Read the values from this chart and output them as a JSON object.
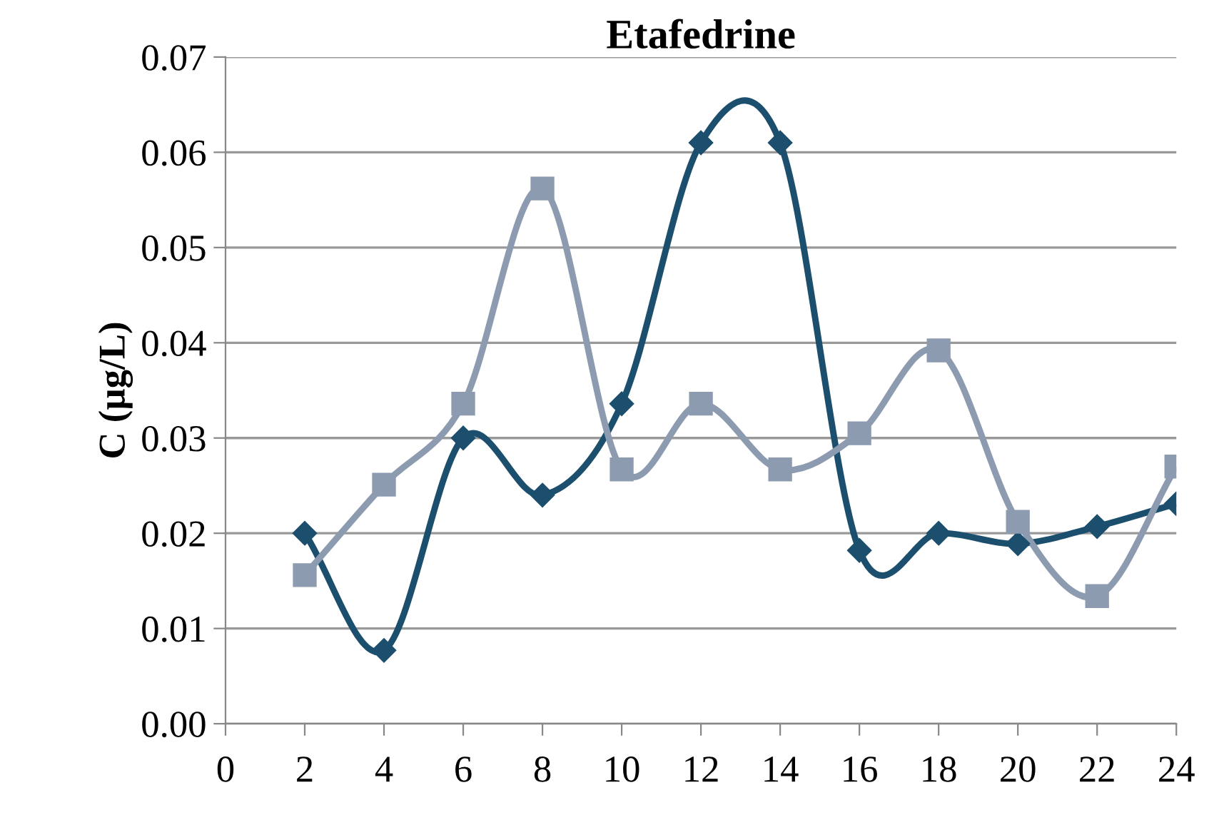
{
  "chart_data": {
    "type": "line",
    "title": "Etafedrine",
    "ylabel": "C (µg/L)",
    "x": [
      2,
      4,
      6,
      8,
      10,
      12,
      14,
      16,
      18,
      20,
      22,
      24
    ],
    "series": [
      {
        "color": "#1c4f6e",
        "marker": "diamond",
        "values": [
          0.02,
          0.0077,
          0.03,
          0.024,
          0.0336,
          0.061,
          0.061,
          0.0182,
          0.02,
          0.0189,
          0.0207,
          0.0231
        ]
      },
      {
        "color": "#8d9bb0",
        "marker": "square",
        "values": [
          0.0156,
          0.0251,
          0.0336,
          0.0562,
          0.0267,
          0.0336,
          0.0267,
          0.0305,
          0.0392,
          0.0212,
          0.0134,
          0.027
        ]
      }
    ],
    "xlim": [
      0,
      24
    ],
    "xticks": [
      0,
      2,
      4,
      6,
      8,
      10,
      12,
      14,
      16,
      18,
      20,
      22,
      24
    ],
    "ylim": [
      0,
      0.07
    ],
    "yticks": [
      {
        "value": 0,
        "label": "0.00"
      },
      0.01,
      0.02,
      0.03,
      0.04,
      0.05,
      0.06,
      0.07
    ],
    "grid": "y",
    "legend": false,
    "line_style": "solid"
  }
}
